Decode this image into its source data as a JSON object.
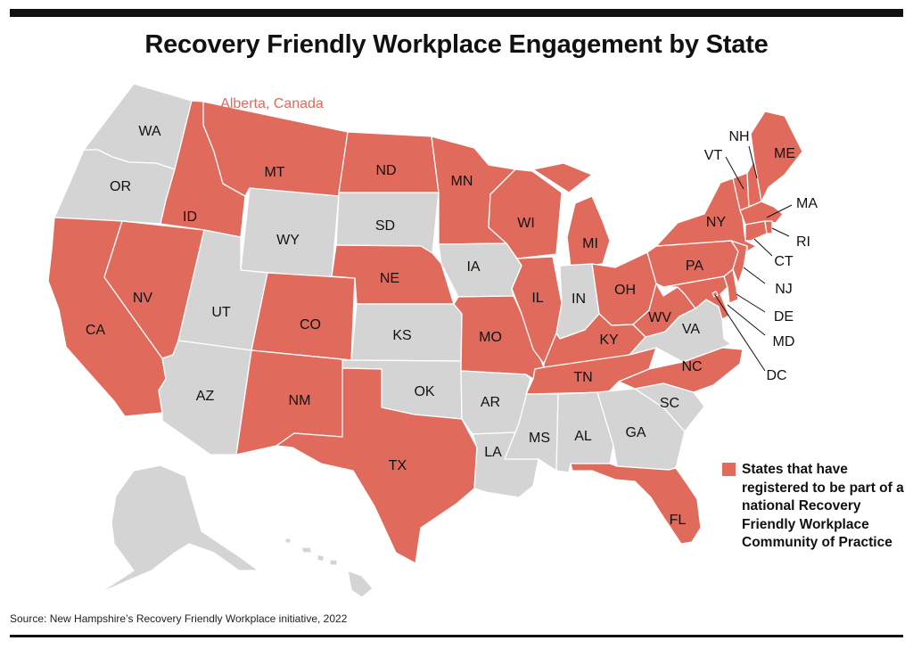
{
  "title": "Recovery Friendly Workplace Engagement by State",
  "source": "Source: New Hampshire’s Recovery Friendly Workplace initiative, 2022",
  "colors": {
    "registered": "#e06a5c",
    "other": "#d4d4d5",
    "rule": "#111111",
    "text": "#111111"
  },
  "canada_label": "Alberta, Canada",
  "legend": {
    "label": "States that have registered to be part of a national Recovery Friendly Workplace Community of Practice"
  },
  "states": {
    "WA": {
      "label": "WA",
      "registered": false
    },
    "OR": {
      "label": "OR",
      "registered": false
    },
    "CA": {
      "label": "CA",
      "registered": true
    },
    "ID": {
      "label": "ID",
      "registered": true
    },
    "NV": {
      "label": "NV",
      "registered": true
    },
    "MT": {
      "label": "MT",
      "registered": true
    },
    "WY": {
      "label": "WY",
      "registered": false
    },
    "UT": {
      "label": "UT",
      "registered": false
    },
    "AZ": {
      "label": "AZ",
      "registered": false
    },
    "CO": {
      "label": "CO",
      "registered": true
    },
    "NM": {
      "label": "NM",
      "registered": true
    },
    "ND": {
      "label": "ND",
      "registered": true
    },
    "SD": {
      "label": "SD",
      "registered": false
    },
    "NE": {
      "label": "NE",
      "registered": true
    },
    "KS": {
      "label": "KS",
      "registered": false
    },
    "OK": {
      "label": "OK",
      "registered": false
    },
    "TX": {
      "label": "TX",
      "registered": true
    },
    "MN": {
      "label": "MN",
      "registered": true
    },
    "IA": {
      "label": "IA",
      "registered": false
    },
    "MO": {
      "label": "MO",
      "registered": true
    },
    "AR": {
      "label": "AR",
      "registered": false
    },
    "LA": {
      "label": "LA",
      "registered": false
    },
    "WI": {
      "label": "WI",
      "registered": true
    },
    "IL": {
      "label": "IL",
      "registered": true
    },
    "MI": {
      "label": "MI",
      "registered": true
    },
    "IN": {
      "label": "IN",
      "registered": false
    },
    "OH": {
      "label": "OH",
      "registered": true
    },
    "KY": {
      "label": "KY",
      "registered": true
    },
    "TN": {
      "label": "TN",
      "registered": true
    },
    "MS": {
      "label": "MS",
      "registered": false
    },
    "AL": {
      "label": "AL",
      "registered": false
    },
    "GA": {
      "label": "GA",
      "registered": false
    },
    "FL": {
      "label": "FL",
      "registered": true
    },
    "SC": {
      "label": "SC",
      "registered": false
    },
    "NC": {
      "label": "NC",
      "registered": true
    },
    "VA": {
      "label": "VA",
      "registered": false
    },
    "WV": {
      "label": "WV",
      "registered": true
    },
    "MD": {
      "label": "MD",
      "registered": true
    },
    "DE": {
      "label": "DE",
      "registered": true
    },
    "DC": {
      "label": "DC",
      "registered": true
    },
    "PA": {
      "label": "PA",
      "registered": true
    },
    "NJ": {
      "label": "NJ",
      "registered": true
    },
    "NY": {
      "label": "NY",
      "registered": true
    },
    "CT": {
      "label": "CT",
      "registered": true
    },
    "RI": {
      "label": "RI",
      "registered": true
    },
    "MA": {
      "label": "MA",
      "registered": true
    },
    "VT": {
      "label": "VT",
      "registered": true
    },
    "NH": {
      "label": "NH",
      "registered": true
    },
    "ME": {
      "label": "ME",
      "registered": true
    },
    "AK": {
      "label": "",
      "registered": false
    },
    "HI": {
      "label": "",
      "registered": false
    }
  }
}
